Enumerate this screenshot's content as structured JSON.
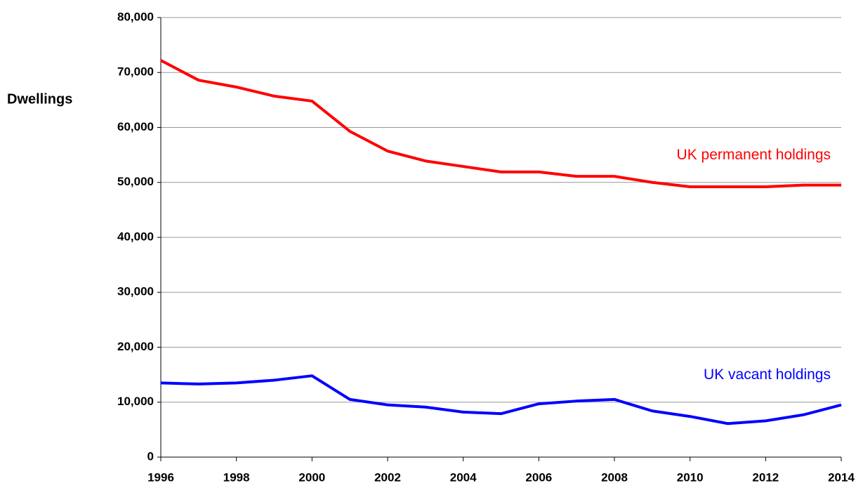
{
  "chart_data": {
    "type": "line",
    "y_label": "Dwellings",
    "x": [
      1996,
      1997,
      1998,
      1999,
      2000,
      2001,
      2002,
      2003,
      2004,
      2005,
      2006,
      2007,
      2008,
      2009,
      2010,
      2011,
      2012,
      2013,
      2014
    ],
    "series": [
      {
        "name": "UK permanent holdings",
        "color": "#ff0000",
        "values": [
          72200,
          68600,
          67350,
          65700,
          64800,
          59300,
          55700,
          53900,
          52900,
          51900,
          51900,
          51100,
          51100,
          50000,
          49200,
          49200,
          49200,
          49500,
          49500
        ]
      },
      {
        "name": "UK vacant holdings",
        "color": "#0000ff",
        "values": [
          13500,
          13300,
          13500,
          14000,
          14800,
          10500,
          9500,
          9100,
          8200,
          7900,
          9700,
          10200,
          10500,
          8400,
          7400,
          6100,
          6600,
          7700,
          9500
        ]
      }
    ],
    "xlim": [
      1996,
      2014
    ],
    "xticks": [
      1996,
      1998,
      2000,
      2002,
      2004,
      2006,
      2008,
      2010,
      2012,
      2014
    ],
    "ylim": [
      0,
      80000
    ],
    "yticks": [
      0,
      {
        "value": 10000,
        "label": "10,000"
      },
      {
        "value": 20000,
        "label": "20,000"
      },
      {
        "value": 30000,
        "label": "30,000"
      },
      {
        "value": 40000,
        "label": "40,000"
      },
      {
        "value": 50000,
        "label": "50,000"
      },
      {
        "value": 60000,
        "label": "60,000"
      },
      {
        "value": 70000,
        "label": "70,000"
      },
      {
        "value": 80000,
        "label": "80,000"
      }
    ],
    "grid": true
  }
}
